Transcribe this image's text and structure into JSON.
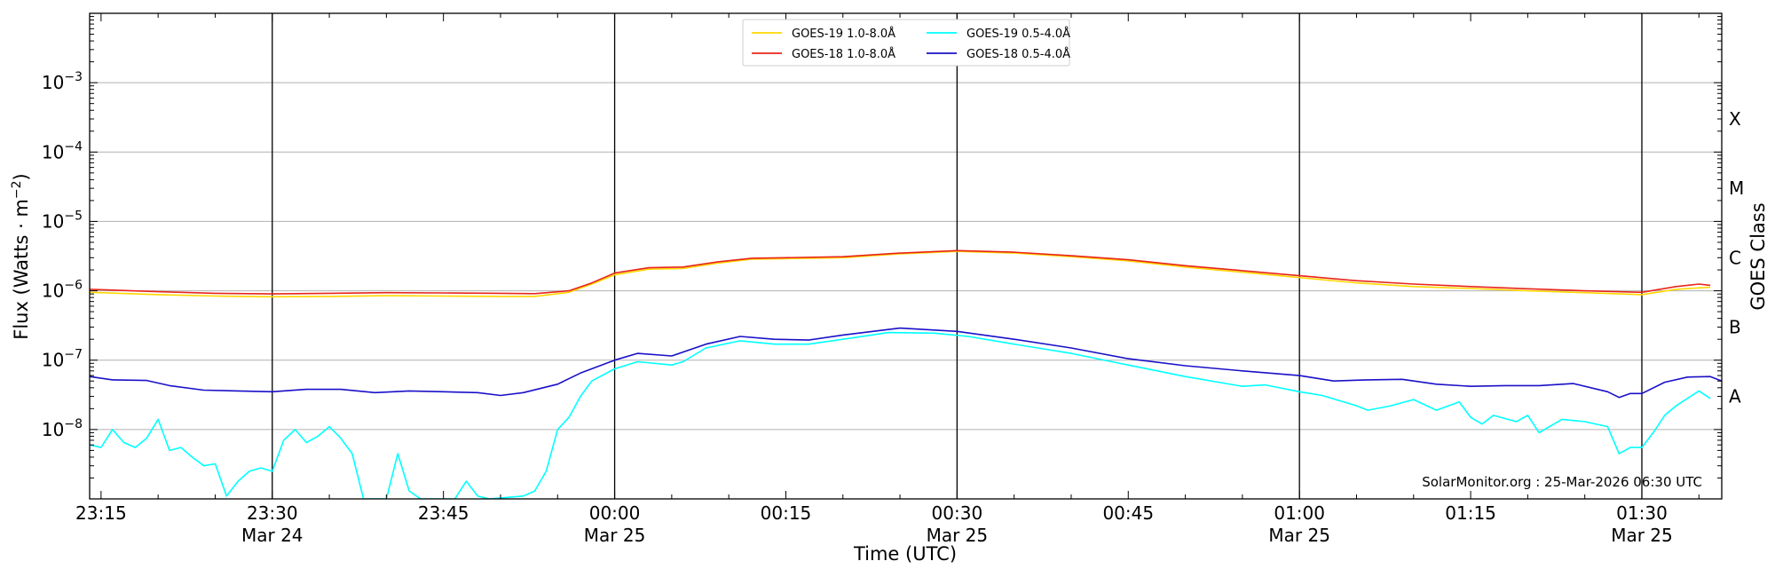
{
  "chart_data": {
    "type": "line",
    "xlabel": "Time (UTC)",
    "ylabel": "Flux (Watts · m^-2)",
    "y2label": "GOES Class",
    "y_scale": "log",
    "x_range": [
      "2026-03-24T23:14",
      "2026-03-25T01:37"
    ],
    "ylim": [
      1e-09,
      0.01
    ],
    "x_ticks": [
      {
        "t": "2026-03-24T23:15",
        "label": "23:15",
        "sub": ""
      },
      {
        "t": "2026-03-24T23:30",
        "label": "23:30",
        "sub": "Mar 24"
      },
      {
        "t": "2026-03-24T23:45",
        "label": "23:45",
        "sub": ""
      },
      {
        "t": "2026-03-25T00:00",
        "label": "00:00",
        "sub": "Mar 25"
      },
      {
        "t": "2026-03-25T00:15",
        "label": "00:15",
        "sub": ""
      },
      {
        "t": "2026-03-25T00:30",
        "label": "00:30",
        "sub": "Mar 25"
      },
      {
        "t": "2026-03-25T00:45",
        "label": "00:45",
        "sub": ""
      },
      {
        "t": "2026-03-25T01:00",
        "label": "01:00",
        "sub": "Mar 25"
      },
      {
        "t": "2026-03-25T01:15",
        "label": "01:15",
        "sub": ""
      },
      {
        "t": "2026-03-25T01:30",
        "label": "01:30",
        "sub": "Mar 25"
      }
    ],
    "y_ticks": [
      {
        "value": 1e-08,
        "base": "10",
        "exp": "−8"
      },
      {
        "value": 1e-07,
        "base": "10",
        "exp": "−7"
      },
      {
        "value": 1e-06,
        "base": "10",
        "exp": "−6"
      },
      {
        "value": 1e-05,
        "base": "10",
        "exp": "−5"
      },
      {
        "value": 0.0001,
        "base": "10",
        "exp": "−4"
      },
      {
        "value": 0.001,
        "base": "10",
        "exp": "−3"
      }
    ],
    "goes_classes": [
      {
        "label": "A",
        "value": 3e-08
      },
      {
        "label": "B",
        "value": 3e-07
      },
      {
        "label": "C",
        "value": 3e-06
      },
      {
        "label": "M",
        "value": 3e-05
      },
      {
        "label": "X",
        "value": 0.0003
      }
    ],
    "day_boundaries": [
      "2026-03-24T23:30",
      "2026-03-25T00:00",
      "2026-03-25T00:30",
      "2026-03-25T01:00",
      "2026-03-25T01:30"
    ],
    "grid": "horizontal at decades",
    "legend_position": "top-center",
    "series": [
      {
        "name": "GOES-19 1.0-8.0Å",
        "color": "#ffd700",
        "points": [
          [
            "2026-03-24T23:14",
            9.5e-07
          ],
          [
            "2026-03-24T23:20",
            8.8e-07
          ],
          [
            "2026-03-24T23:25",
            8.4e-07
          ],
          [
            "2026-03-24T23:30",
            8.2e-07
          ],
          [
            "2026-03-24T23:35",
            8.3e-07
          ],
          [
            "2026-03-24T23:40",
            8.5e-07
          ],
          [
            "2026-03-24T23:45",
            8.4e-07
          ],
          [
            "2026-03-24T23:50",
            8.3e-07
          ],
          [
            "2026-03-24T23:53",
            8.3e-07
          ],
          [
            "2026-03-24T23:56",
            9.5e-07
          ],
          [
            "2026-03-24T23:58",
            1.25e-06
          ],
          [
            "2026-03-25T00:00",
            1.7e-06
          ],
          [
            "2026-03-25T00:03",
            2.05e-06
          ],
          [
            "2026-03-25T00:06",
            2.1e-06
          ],
          [
            "2026-03-25T00:09",
            2.5e-06
          ],
          [
            "2026-03-25T00:12",
            2.85e-06
          ],
          [
            "2026-03-25T00:15",
            2.9e-06
          ],
          [
            "2026-03-25T00:20",
            3e-06
          ],
          [
            "2026-03-25T00:25",
            3.4e-06
          ],
          [
            "2026-03-25T00:30",
            3.7e-06
          ],
          [
            "2026-03-25T00:35",
            3.5e-06
          ],
          [
            "2026-03-25T00:40",
            3.1e-06
          ],
          [
            "2026-03-25T00:45",
            2.7e-06
          ],
          [
            "2026-03-25T00:50",
            2.2e-06
          ],
          [
            "2026-03-25T00:55",
            1.85e-06
          ],
          [
            "2026-03-25T01:00",
            1.55e-06
          ],
          [
            "2026-03-25T01:05",
            1.3e-06
          ],
          [
            "2026-03-25T01:10",
            1.15e-06
          ],
          [
            "2026-03-25T01:15",
            1.08e-06
          ],
          [
            "2026-03-25T01:20",
            1e-06
          ],
          [
            "2026-03-25T01:25",
            9.4e-07
          ],
          [
            "2026-03-25T01:30",
            8.8e-07
          ],
          [
            "2026-03-25T01:33",
            1.05e-06
          ],
          [
            "2026-03-25T01:35",
            1.1e-06
          ],
          [
            "2026-03-25T01:36",
            1.12e-06
          ]
        ]
      },
      {
        "name": "GOES-18 1.0-8.0Å",
        "color": "#e8251b",
        "points": [
          [
            "2026-03-24T23:14",
            1.05e-06
          ],
          [
            "2026-03-24T23:20",
            9.7e-07
          ],
          [
            "2026-03-24T23:25",
            9.2e-07
          ],
          [
            "2026-03-24T23:30",
            9e-07
          ],
          [
            "2026-03-24T23:35",
            9.2e-07
          ],
          [
            "2026-03-24T23:40",
            9.4e-07
          ],
          [
            "2026-03-24T23:45",
            9.3e-07
          ],
          [
            "2026-03-24T23:50",
            9.2e-07
          ],
          [
            "2026-03-24T23:53",
            9.1e-07
          ],
          [
            "2026-03-24T23:56",
            1e-06
          ],
          [
            "2026-03-24T23:58",
            1.3e-06
          ],
          [
            "2026-03-25T00:00",
            1.8e-06
          ],
          [
            "2026-03-25T00:03",
            2.15e-06
          ],
          [
            "2026-03-25T00:06",
            2.2e-06
          ],
          [
            "2026-03-25T00:09",
            2.6e-06
          ],
          [
            "2026-03-25T00:12",
            2.95e-06
          ],
          [
            "2026-03-25T00:15",
            3e-06
          ],
          [
            "2026-03-25T00:20",
            3.1e-06
          ],
          [
            "2026-03-25T00:25",
            3.5e-06
          ],
          [
            "2026-03-25T00:30",
            3.8e-06
          ],
          [
            "2026-03-25T00:35",
            3.6e-06
          ],
          [
            "2026-03-25T00:40",
            3.2e-06
          ],
          [
            "2026-03-25T00:45",
            2.8e-06
          ],
          [
            "2026-03-25T00:50",
            2.3e-06
          ],
          [
            "2026-03-25T00:55",
            1.95e-06
          ],
          [
            "2026-03-25T01:00",
            1.65e-06
          ],
          [
            "2026-03-25T01:05",
            1.4e-06
          ],
          [
            "2026-03-25T01:10",
            1.25e-06
          ],
          [
            "2026-03-25T01:15",
            1.15e-06
          ],
          [
            "2026-03-25T01:20",
            1.07e-06
          ],
          [
            "2026-03-25T01:25",
            1e-06
          ],
          [
            "2026-03-25T01:30",
            9.5e-07
          ],
          [
            "2026-03-25T01:33",
            1.15e-06
          ],
          [
            "2026-03-25T01:35",
            1.25e-06
          ],
          [
            "2026-03-25T01:36",
            1.2e-06
          ]
        ]
      },
      {
        "name": "GOES-19 0.5-4.0Å",
        "color": "#00ffff",
        "points": [
          [
            "2026-03-24T23:14",
            6e-09
          ],
          [
            "2026-03-24T23:15",
            5.5e-09
          ],
          [
            "2026-03-24T23:16",
            1e-08
          ],
          [
            "2026-03-24T23:17",
            6.5e-09
          ],
          [
            "2026-03-24T23:18",
            5.5e-09
          ],
          [
            "2026-03-24T23:19",
            7.5e-09
          ],
          [
            "2026-03-24T23:20",
            1.4e-08
          ],
          [
            "2026-03-24T23:21",
            5e-09
          ],
          [
            "2026-03-24T23:22",
            5.5e-09
          ],
          [
            "2026-03-24T23:23",
            4e-09
          ],
          [
            "2026-03-24T23:24",
            3e-09
          ],
          [
            "2026-03-24T23:25",
            3.2e-09
          ],
          [
            "2026-03-24T23:26",
            1.1e-09
          ],
          [
            "2026-03-24T23:27",
            1.8e-09
          ],
          [
            "2026-03-24T23:28",
            2.5e-09
          ],
          [
            "2026-03-24T23:29",
            2.8e-09
          ],
          [
            "2026-03-24T23:30",
            2.5e-09
          ],
          [
            "2026-03-24T23:31",
            7e-09
          ],
          [
            "2026-03-24T23:32",
            1e-08
          ],
          [
            "2026-03-24T23:33",
            6.5e-09
          ],
          [
            "2026-03-24T23:34",
            8e-09
          ],
          [
            "2026-03-24T23:35",
            1.1e-08
          ],
          [
            "2026-03-24T23:36",
            7.5e-09
          ],
          [
            "2026-03-24T23:37",
            4.5e-09
          ],
          [
            "2026-03-24T23:38",
            1e-09
          ],
          [
            "2026-03-24T23:40",
            1e-09
          ],
          [
            "2026-03-24T23:41",
            4.5e-09
          ],
          [
            "2026-03-24T23:42",
            1.3e-09
          ],
          [
            "2026-03-24T23:43",
            1e-09
          ],
          [
            "2026-03-24T23:46",
            1e-09
          ],
          [
            "2026-03-24T23:47",
            1.8e-09
          ],
          [
            "2026-03-24T23:48",
            1.1e-09
          ],
          [
            "2026-03-24T23:49",
            1e-09
          ],
          [
            "2026-03-24T23:52",
            1.1e-09
          ],
          [
            "2026-03-24T23:53",
            1.3e-09
          ],
          [
            "2026-03-24T23:54",
            2.5e-09
          ],
          [
            "2026-03-24T23:55",
            1e-08
          ],
          [
            "2026-03-24T23:56",
            1.5e-08
          ],
          [
            "2026-03-24T23:57",
            3e-08
          ],
          [
            "2026-03-24T23:58",
            5e-08
          ],
          [
            "2026-03-25T00:00",
            7.5e-08
          ],
          [
            "2026-03-25T00:02",
            9.5e-08
          ],
          [
            "2026-03-25T00:05",
            8.5e-08
          ],
          [
            "2026-03-25T00:06",
            9.5e-08
          ],
          [
            "2026-03-25T00:08",
            1.5e-07
          ],
          [
            "2026-03-25T00:11",
            1.9e-07
          ],
          [
            "2026-03-25T00:14",
            1.7e-07
          ],
          [
            "2026-03-25T00:17",
            1.7e-07
          ],
          [
            "2026-03-25T00:20",
            2e-07
          ],
          [
            "2026-03-25T00:24",
            2.5e-07
          ],
          [
            "2026-03-25T00:28",
            2.45e-07
          ],
          [
            "2026-03-25T00:31",
            2.2e-07
          ],
          [
            "2026-03-25T00:35",
            1.7e-07
          ],
          [
            "2026-03-25T00:40",
            1.25e-07
          ],
          [
            "2026-03-25T00:45",
            8.5e-08
          ],
          [
            "2026-03-25T00:50",
            5.8e-08
          ],
          [
            "2026-03-25T00:55",
            4.2e-08
          ],
          [
            "2026-03-25T00:57",
            4.4e-08
          ],
          [
            "2026-03-25T01:00",
            3.5e-08
          ],
          [
            "2026-03-25T01:02",
            3.1e-08
          ],
          [
            "2026-03-25T01:05",
            2.2e-08
          ],
          [
            "2026-03-25T01:06",
            1.9e-08
          ],
          [
            "2026-03-25T01:08",
            2.2e-08
          ],
          [
            "2026-03-25T01:10",
            2.7e-08
          ],
          [
            "2026-03-25T01:12",
            1.9e-08
          ],
          [
            "2026-03-25T01:14",
            2.5e-08
          ],
          [
            "2026-03-25T01:15",
            1.5e-08
          ],
          [
            "2026-03-25T01:16",
            1.2e-08
          ],
          [
            "2026-03-25T01:17",
            1.6e-08
          ],
          [
            "2026-03-25T01:19",
            1.3e-08
          ],
          [
            "2026-03-25T01:20",
            1.6e-08
          ],
          [
            "2026-03-25T01:21",
            9e-09
          ],
          [
            "2026-03-25T01:23",
            1.4e-08
          ],
          [
            "2026-03-25T01:25",
            1.3e-08
          ],
          [
            "2026-03-25T01:27",
            1.1e-08
          ],
          [
            "2026-03-25T01:28",
            4.5e-09
          ],
          [
            "2026-03-25T01:29",
            5.5e-09
          ],
          [
            "2026-03-25T01:30",
            5.5e-09
          ],
          [
            "2026-03-25T01:31",
            9e-09
          ],
          [
            "2026-03-25T01:32",
            1.6e-08
          ],
          [
            "2026-03-25T01:33",
            2.2e-08
          ],
          [
            "2026-03-25T01:35",
            3.6e-08
          ],
          [
            "2026-03-25T01:36",
            2.8e-08
          ]
        ]
      },
      {
        "name": "GOES-18 0.5-4.0Å",
        "color": "#1a10c8",
        "points": [
          [
            "2026-03-24T23:14",
            5.8e-08
          ],
          [
            "2026-03-24T23:16",
            5.2e-08
          ],
          [
            "2026-03-24T23:19",
            5.1e-08
          ],
          [
            "2026-03-24T23:21",
            4.3e-08
          ],
          [
            "2026-03-24T23:24",
            3.7e-08
          ],
          [
            "2026-03-24T23:27",
            3.6e-08
          ],
          [
            "2026-03-24T23:30",
            3.5e-08
          ],
          [
            "2026-03-24T23:33",
            3.8e-08
          ],
          [
            "2026-03-24T23:36",
            3.8e-08
          ],
          [
            "2026-03-24T23:39",
            3.4e-08
          ],
          [
            "2026-03-24T23:42",
            3.6e-08
          ],
          [
            "2026-03-24T23:45",
            3.5e-08
          ],
          [
            "2026-03-24T23:48",
            3.4e-08
          ],
          [
            "2026-03-24T23:50",
            3.1e-08
          ],
          [
            "2026-03-24T23:52",
            3.4e-08
          ],
          [
            "2026-03-24T23:55",
            4.5e-08
          ],
          [
            "2026-03-24T23:57",
            6.5e-08
          ],
          [
            "2026-03-25T00:00",
            1e-07
          ],
          [
            "2026-03-25T00:02",
            1.25e-07
          ],
          [
            "2026-03-25T00:05",
            1.15e-07
          ],
          [
            "2026-03-25T00:08",
            1.7e-07
          ],
          [
            "2026-03-25T00:11",
            2.2e-07
          ],
          [
            "2026-03-25T00:14",
            2e-07
          ],
          [
            "2026-03-25T00:17",
            1.95e-07
          ],
          [
            "2026-03-25T00:20",
            2.3e-07
          ],
          [
            "2026-03-25T00:25",
            2.9e-07
          ],
          [
            "2026-03-25T00:30",
            2.6e-07
          ],
          [
            "2026-03-25T00:35",
            2e-07
          ],
          [
            "2026-03-25T00:40",
            1.5e-07
          ],
          [
            "2026-03-25T00:45",
            1.05e-07
          ],
          [
            "2026-03-25T00:50",
            8.3e-08
          ],
          [
            "2026-03-25T00:55",
            7e-08
          ],
          [
            "2026-03-25T01:00",
            6e-08
          ],
          [
            "2026-03-25T01:03",
            5e-08
          ],
          [
            "2026-03-25T01:06",
            5.2e-08
          ],
          [
            "2026-03-25T01:09",
            5.3e-08
          ],
          [
            "2026-03-25T01:12",
            4.5e-08
          ],
          [
            "2026-03-25T01:15",
            4.2e-08
          ],
          [
            "2026-03-25T01:18",
            4.3e-08
          ],
          [
            "2026-03-25T01:21",
            4.3e-08
          ],
          [
            "2026-03-25T01:24",
            4.6e-08
          ],
          [
            "2026-03-25T01:27",
            3.5e-08
          ],
          [
            "2026-03-25T01:28",
            2.9e-08
          ],
          [
            "2026-03-25T01:29",
            3.3e-08
          ],
          [
            "2026-03-25T01:30",
            3.3e-08
          ],
          [
            "2026-03-25T01:32",
            4.8e-08
          ],
          [
            "2026-03-25T01:34",
            5.7e-08
          ],
          [
            "2026-03-25T01:36",
            5.8e-08
          ],
          [
            "2026-03-25T01:37",
            5e-08
          ]
        ]
      }
    ],
    "credit": "SolarMonitor.org : 25-Mar-2026 06:30 UTC"
  }
}
